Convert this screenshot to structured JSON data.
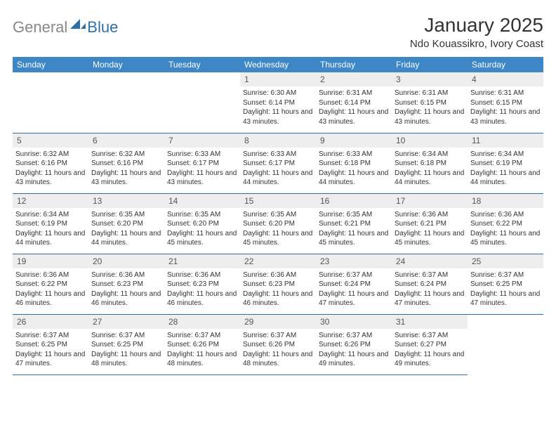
{
  "brand": {
    "part1": "General",
    "part2": "Blue"
  },
  "title": "January 2025",
  "location": "Ndo Kouassikro, Ivory Coast",
  "colors": {
    "header_bg": "#3d87c7",
    "header_fg": "#ffffff",
    "accent": "#2f6fa8",
    "daynum_bg": "#eeeeee",
    "text": "#333333",
    "logo_gray": "#888888"
  },
  "day_names": [
    "Sunday",
    "Monday",
    "Tuesday",
    "Wednesday",
    "Thursday",
    "Friday",
    "Saturday"
  ],
  "first_weekday_index": 3,
  "days_in_month": 31,
  "days": {
    "1": {
      "sunrise": "6:30 AM",
      "sunset": "6:14 PM",
      "daylight": "11 hours and 43 minutes."
    },
    "2": {
      "sunrise": "6:31 AM",
      "sunset": "6:14 PM",
      "daylight": "11 hours and 43 minutes."
    },
    "3": {
      "sunrise": "6:31 AM",
      "sunset": "6:15 PM",
      "daylight": "11 hours and 43 minutes."
    },
    "4": {
      "sunrise": "6:31 AM",
      "sunset": "6:15 PM",
      "daylight": "11 hours and 43 minutes."
    },
    "5": {
      "sunrise": "6:32 AM",
      "sunset": "6:16 PM",
      "daylight": "11 hours and 43 minutes."
    },
    "6": {
      "sunrise": "6:32 AM",
      "sunset": "6:16 PM",
      "daylight": "11 hours and 43 minutes."
    },
    "7": {
      "sunrise": "6:33 AM",
      "sunset": "6:17 PM",
      "daylight": "11 hours and 43 minutes."
    },
    "8": {
      "sunrise": "6:33 AM",
      "sunset": "6:17 PM",
      "daylight": "11 hours and 44 minutes."
    },
    "9": {
      "sunrise": "6:33 AM",
      "sunset": "6:18 PM",
      "daylight": "11 hours and 44 minutes."
    },
    "10": {
      "sunrise": "6:34 AM",
      "sunset": "6:18 PM",
      "daylight": "11 hours and 44 minutes."
    },
    "11": {
      "sunrise": "6:34 AM",
      "sunset": "6:19 PM",
      "daylight": "11 hours and 44 minutes."
    },
    "12": {
      "sunrise": "6:34 AM",
      "sunset": "6:19 PM",
      "daylight": "11 hours and 44 minutes."
    },
    "13": {
      "sunrise": "6:35 AM",
      "sunset": "6:20 PM",
      "daylight": "11 hours and 44 minutes."
    },
    "14": {
      "sunrise": "6:35 AM",
      "sunset": "6:20 PM",
      "daylight": "11 hours and 45 minutes."
    },
    "15": {
      "sunrise": "6:35 AM",
      "sunset": "6:20 PM",
      "daylight": "11 hours and 45 minutes."
    },
    "16": {
      "sunrise": "6:35 AM",
      "sunset": "6:21 PM",
      "daylight": "11 hours and 45 minutes."
    },
    "17": {
      "sunrise": "6:36 AM",
      "sunset": "6:21 PM",
      "daylight": "11 hours and 45 minutes."
    },
    "18": {
      "sunrise": "6:36 AM",
      "sunset": "6:22 PM",
      "daylight": "11 hours and 45 minutes."
    },
    "19": {
      "sunrise": "6:36 AM",
      "sunset": "6:22 PM",
      "daylight": "11 hours and 46 minutes."
    },
    "20": {
      "sunrise": "6:36 AM",
      "sunset": "6:23 PM",
      "daylight": "11 hours and 46 minutes."
    },
    "21": {
      "sunrise": "6:36 AM",
      "sunset": "6:23 PM",
      "daylight": "11 hours and 46 minutes."
    },
    "22": {
      "sunrise": "6:36 AM",
      "sunset": "6:23 PM",
      "daylight": "11 hours and 46 minutes."
    },
    "23": {
      "sunrise": "6:37 AM",
      "sunset": "6:24 PM",
      "daylight": "11 hours and 47 minutes."
    },
    "24": {
      "sunrise": "6:37 AM",
      "sunset": "6:24 PM",
      "daylight": "11 hours and 47 minutes."
    },
    "25": {
      "sunrise": "6:37 AM",
      "sunset": "6:25 PM",
      "daylight": "11 hours and 47 minutes."
    },
    "26": {
      "sunrise": "6:37 AM",
      "sunset": "6:25 PM",
      "daylight": "11 hours and 47 minutes."
    },
    "27": {
      "sunrise": "6:37 AM",
      "sunset": "6:25 PM",
      "daylight": "11 hours and 48 minutes."
    },
    "28": {
      "sunrise": "6:37 AM",
      "sunset": "6:26 PM",
      "daylight": "11 hours and 48 minutes."
    },
    "29": {
      "sunrise": "6:37 AM",
      "sunset": "6:26 PM",
      "daylight": "11 hours and 48 minutes."
    },
    "30": {
      "sunrise": "6:37 AM",
      "sunset": "6:26 PM",
      "daylight": "11 hours and 49 minutes."
    },
    "31": {
      "sunrise": "6:37 AM",
      "sunset": "6:27 PM",
      "daylight": "11 hours and 49 minutes."
    }
  },
  "labels": {
    "sunrise": "Sunrise:",
    "sunset": "Sunset:",
    "daylight": "Daylight:"
  }
}
